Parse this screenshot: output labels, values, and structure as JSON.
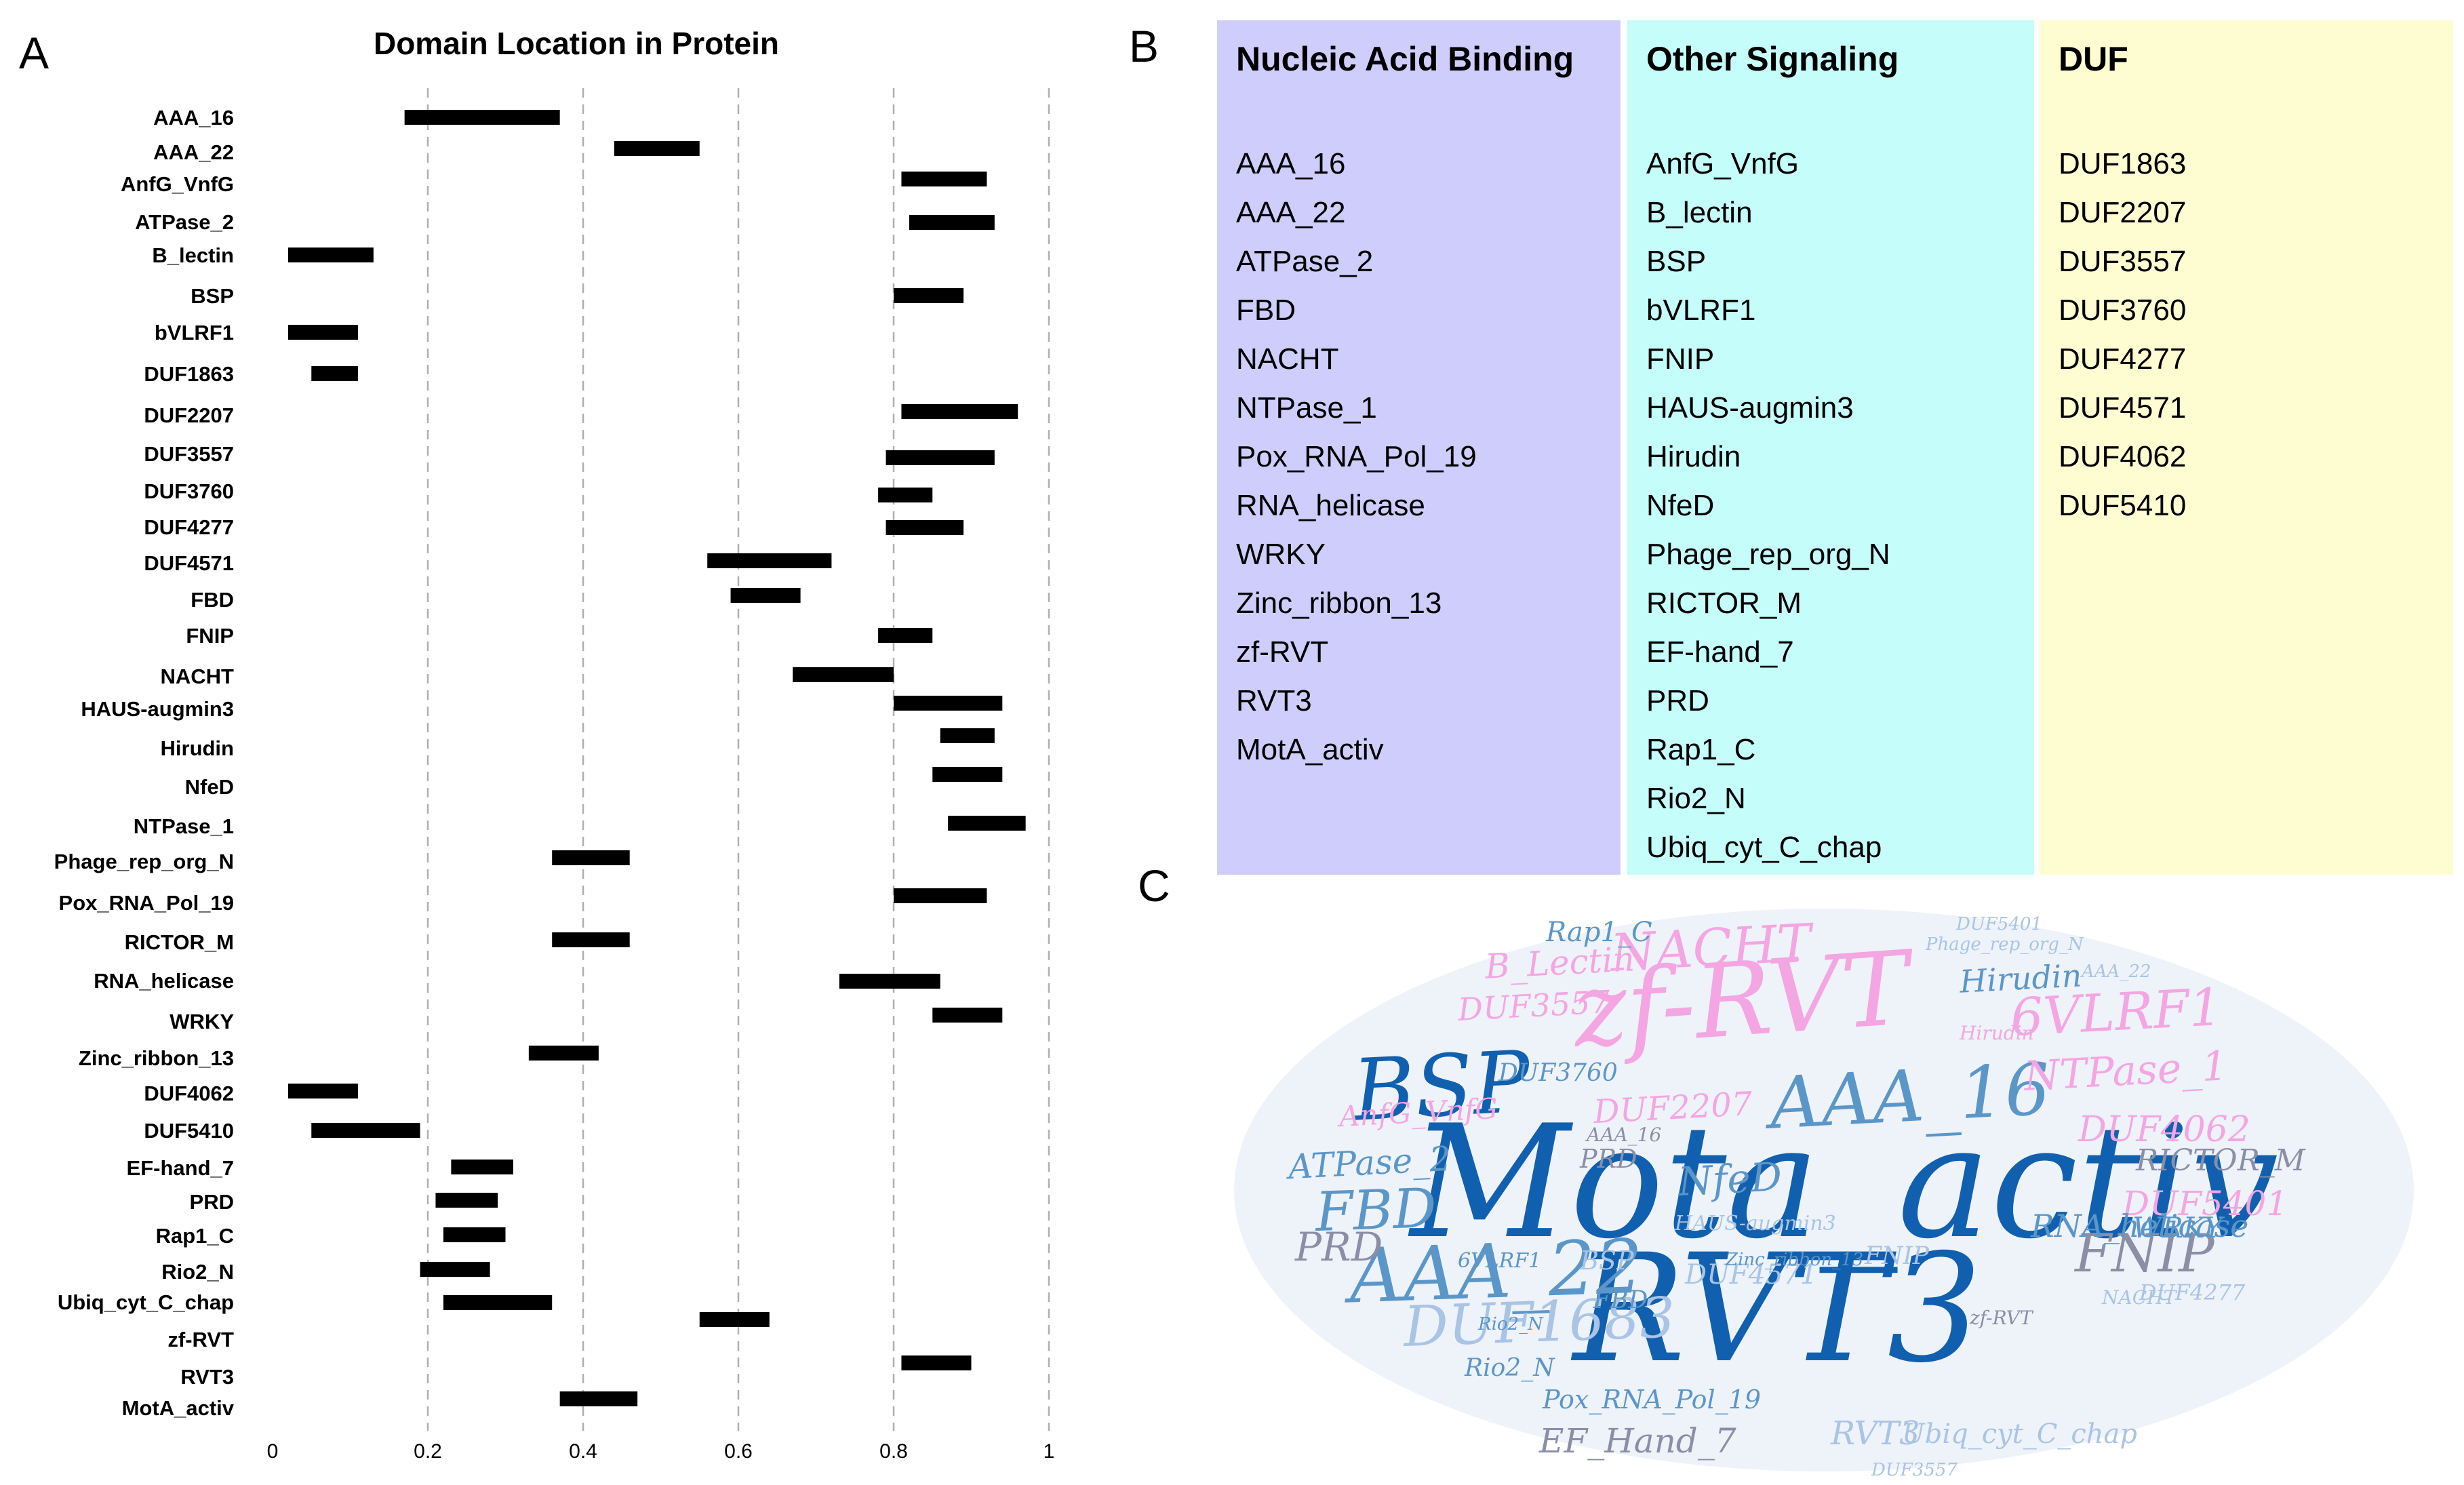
{
  "panels": {
    "a": "A",
    "b": "B",
    "c": "C"
  },
  "colors": {
    "bar": "#000000",
    "grid": "#b0b0b0",
    "nucleic": "#cfcdfb",
    "other": "#c4fdfa",
    "duf": "#fefdd2",
    "cloud_dark": "#1160b0",
    "cloud_mid": "#5b96c8",
    "cloud_pink": "#f3a6e2",
    "cloud_light": "#a9c4e4",
    "cloud_gray": "#8a8fa6"
  },
  "chart_data": {
    "type": "bar",
    "orientation": "horizontal-range",
    "title": "Domain Location in Protein",
    "xlabel": "",
    "ylabel": "",
    "xlim": [
      0,
      1
    ],
    "xticks": [
      "0",
      "0.2",
      "0.4",
      "0.6",
      "0.8",
      "1"
    ],
    "grid": "vertical dashed",
    "categories": [
      "AAA_16",
      "AAA_22",
      "AnfG_VnfG",
      "ATPase_2",
      "B_lectin",
      "BSP",
      "bVLRF1",
      "DUF1863",
      "DUF2207",
      "DUF3557",
      "DUF3760",
      "DUF4277",
      "DUF4571",
      "FBD",
      "FNIP",
      "NACHT",
      "HAUS-augmin3",
      "Hirudin",
      "NfeD",
      "NTPase_1",
      "Phage_rep_org_N",
      "Pox_RNA_Pol_19",
      "RICTOR_M",
      "RNA_helicase",
      "WRKY",
      "Zinc_ribbon_13",
      "DUF4062",
      "DUF5410",
      "EF-hand_7",
      "PRD",
      "Rap1_C",
      "Rio2_N",
      "Ubiq_cyt_C_chap",
      "zf-RVT",
      "RVT3",
      "MotA_activ"
    ],
    "ranges": [
      [
        0.17,
        0.37
      ],
      [
        0.44,
        0.55
      ],
      [
        0.81,
        0.92
      ],
      [
        0.82,
        0.93
      ],
      [
        0.02,
        0.13
      ],
      [
        0.8,
        0.89
      ],
      [
        0.02,
        0.11
      ],
      [
        0.05,
        0.11
      ],
      [
        0.81,
        0.96
      ],
      [
        0.79,
        0.93
      ],
      [
        0.78,
        0.85
      ],
      [
        0.79,
        0.89
      ],
      [
        0.56,
        0.72
      ],
      [
        0.59,
        0.68
      ],
      [
        0.78,
        0.85
      ],
      [
        0.67,
        0.8
      ],
      [
        0.8,
        0.94
      ],
      [
        0.86,
        0.93
      ],
      [
        0.85,
        0.94
      ],
      [
        0.87,
        0.97
      ],
      [
        0.36,
        0.46
      ],
      [
        0.8,
        0.92
      ],
      [
        0.36,
        0.46
      ],
      [
        0.73,
        0.86
      ],
      [
        0.85,
        0.94
      ],
      [
        0.33,
        0.42
      ],
      [
        0.02,
        0.11
      ],
      [
        0.05,
        0.19
      ],
      [
        0.23,
        0.31
      ],
      [
        0.21,
        0.29
      ],
      [
        0.22,
        0.3
      ],
      [
        0.19,
        0.28
      ],
      [
        0.22,
        0.36
      ],
      [
        0.55,
        0.64
      ],
      [
        0.81,
        0.9
      ],
      [
        0.37,
        0.47
      ]
    ],
    "label_y": [
      173,
      224,
      271,
      327,
      376,
      436,
      490,
      551,
      612,
      669,
      724,
      777,
      830,
      884,
      937,
      997,
      1045,
      1103,
      1160,
      1218,
      1270,
      1331,
      1389,
      1446,
      1506,
      1560,
      1612,
      1667,
      1722,
      1772,
      1822,
      1875,
      1920,
      1975,
      2030,
      2076
    ],
    "bar_y": [
      173,
      219,
      264,
      328,
      376,
      436,
      490,
      551,
      607,
      675,
      730,
      778,
      827,
      878,
      937,
      995,
      1037,
      1085,
      1142,
      1214,
      1265,
      1321,
      1386,
      1447,
      1497,
      1553,
      1609,
      1667,
      1721,
      1770,
      1821,
      1872,
      1921,
      1946,
      2010,
      2063
    ]
  },
  "domains": {
    "nucleic": {
      "title": "Nucleic Acid Binding",
      "items": [
        "AAA_16",
        "AAA_22",
        "ATPase_2",
        "FBD",
        "NACHT",
        "NTPase_1",
        "Pox_RNA_Pol_19",
        "RNA_helicase",
        "WRKY",
        "Zinc_ribbon_13",
        "zf-RVT",
        "RVT3",
        "MotA_activ"
      ]
    },
    "other": {
      "title": "Other Signaling",
      "items": [
        "AnfG_VnfG",
        "B_lectin",
        "BSP",
        "bVLRF1",
        "FNIP",
        "HAUS-augmin3",
        "Hirudin",
        "NfeD",
        "Phage_rep_org_N",
        "RICTOR_M",
        "EF-hand_7",
        "PRD",
        "Rap1_C",
        "Rio2_N",
        "Ubiq_cyt_C_chap"
      ]
    },
    "duf": {
      "title": "DUF",
      "items": [
        "DUF1863",
        "DUF2207",
        "DUF3557",
        "DUF3760",
        "DUF4277",
        "DUF4571",
        "DUF4062",
        "DUF5410"
      ]
    }
  },
  "wordcloud": [
    {
      "text": "Mota_activ",
      "color": "cloud_dark"
    },
    {
      "text": "RVT3",
      "color": "cloud_dark"
    },
    {
      "text": "zf-RVT",
      "color": "cloud_pink"
    },
    {
      "text": "BSP",
      "color": "cloud_dark"
    },
    {
      "text": "AAA_22",
      "color": "cloud_mid"
    },
    {
      "text": "AAA_16",
      "color": "cloud_mid"
    },
    {
      "text": "DUF1683",
      "color": "cloud_light"
    },
    {
      "text": "FBD",
      "color": "cloud_mid"
    },
    {
      "text": "NACHT",
      "color": "cloud_pink"
    },
    {
      "text": "6VLRF1",
      "color": "cloud_pink"
    },
    {
      "text": "NTPase_1",
      "color": "cloud_pink"
    },
    {
      "text": "FNIP",
      "color": "cloud_gray"
    },
    {
      "text": "DUF4062",
      "color": "cloud_pink"
    },
    {
      "text": "DUF5401",
      "color": "cloud_pink"
    },
    {
      "text": "ATPase_2",
      "color": "cloud_mid"
    },
    {
      "text": "PRD",
      "color": "cloud_gray"
    },
    {
      "text": "NfeD",
      "color": "cloud_mid"
    },
    {
      "text": "Hirudin",
      "color": "cloud_mid"
    },
    {
      "text": "B_Lectin",
      "color": "cloud_pink"
    },
    {
      "text": "DUF3557",
      "color": "cloud_pink"
    },
    {
      "text": "DUF2207",
      "color": "cloud_pink"
    },
    {
      "text": "AnfG_VnfG",
      "color": "cloud_pink"
    },
    {
      "text": "RICTOR_M",
      "color": "cloud_gray"
    },
    {
      "text": "RNA_helicase",
      "color": "cloud_mid"
    },
    {
      "text": "WRKY",
      "color": "cloud_mid"
    },
    {
      "text": "EF_Hand_7",
      "color": "cloud_gray"
    },
    {
      "text": "RVT3",
      "color": "cloud_light"
    },
    {
      "text": "Ubiq_cyt_C_chap",
      "color": "cloud_light"
    },
    {
      "text": "Pox_RNA_Pol_19",
      "color": "cloud_mid"
    },
    {
      "text": "Rap1_C",
      "color": "cloud_mid"
    },
    {
      "text": "Rio2_N",
      "color": "cloud_mid"
    },
    {
      "text": "DUF3760",
      "color": "cloud_mid"
    },
    {
      "text": "HAUS-augmin3",
      "color": "cloud_light"
    },
    {
      "text": "DUF4571",
      "color": "cloud_light"
    },
    {
      "text": "BSP",
      "color": "cloud_light"
    },
    {
      "text": "FBD",
      "color": "cloud_mid"
    },
    {
      "text": "6VLRF1",
      "color": "cloud_mid"
    },
    {
      "text": "DUF4277",
      "color": "cloud_light"
    },
    {
      "text": "PRD",
      "color": "cloud_gray"
    },
    {
      "text": "AAA_16",
      "color": "cloud_gray"
    },
    {
      "text": "FNIP",
      "color": "cloud_light"
    },
    {
      "text": "NACHT",
      "color": "cloud_light"
    },
    {
      "text": "zf-RVT",
      "color": "cloud_gray"
    },
    {
      "text": "Phage_rep_org_N",
      "color": "cloud_light"
    },
    {
      "text": "DUF5401",
      "color": "cloud_light"
    },
    {
      "text": "AAA_22",
      "color": "cloud_light"
    },
    {
      "text": "Hirudin",
      "color": "cloud_pink"
    },
    {
      "text": "Zinc_ribbon_13",
      "color": "cloud_mid"
    },
    {
      "text": "Rio2_N",
      "color": "cloud_mid"
    },
    {
      "text": "DUF3557",
      "color": "cloud_light"
    }
  ]
}
